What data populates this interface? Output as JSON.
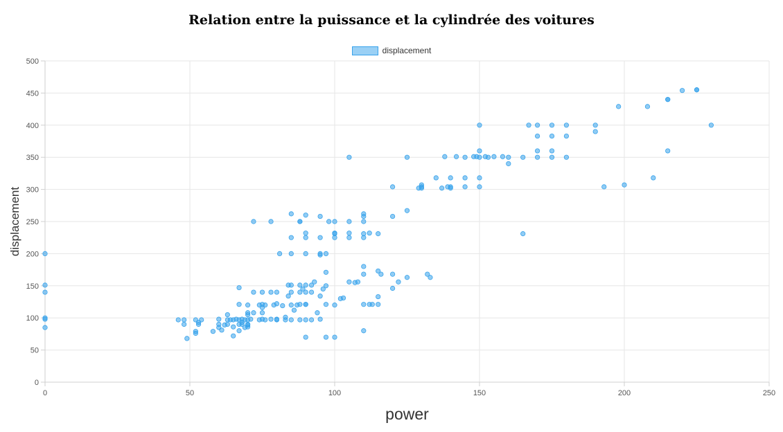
{
  "chart_data": {
    "type": "scatter",
    "title": "Relation entre la puissance et la cylindrée des voitures",
    "xlabel": "power",
    "ylabel": "displacement",
    "xlim": [
      0,
      250
    ],
    "ylim": [
      0,
      500
    ],
    "xticks": [
      "0",
      "50",
      "100",
      "150",
      "200",
      "250"
    ],
    "yticks": [
      "0",
      "50",
      "100",
      "150",
      "200",
      "250",
      "300",
      "350",
      "400",
      "450",
      "500"
    ],
    "grid": true,
    "legend_position": "top",
    "series": [
      {
        "name": "displacement",
        "color": "#36a2eb",
        "points": [
          [
            0,
            200
          ],
          [
            0,
            151
          ],
          [
            0,
            140
          ],
          [
            0,
            100
          ],
          [
            0,
            98
          ],
          [
            0,
            85
          ],
          [
            46,
            97
          ],
          [
            48,
            90
          ],
          [
            48,
            97
          ],
          [
            49,
            68
          ],
          [
            52,
            97
          ],
          [
            52,
            79
          ],
          [
            52,
            76
          ],
          [
            53,
            90
          ],
          [
            53,
            93
          ],
          [
            54,
            97
          ],
          [
            58,
            79
          ],
          [
            60,
            98
          ],
          [
            60,
            90
          ],
          [
            60,
            85
          ],
          [
            61,
            81
          ],
          [
            62,
            89
          ],
          [
            63,
            90
          ],
          [
            63,
            105
          ],
          [
            63,
            97
          ],
          [
            64,
            97
          ],
          [
            65,
            86
          ],
          [
            65,
            72
          ],
          [
            65,
            97
          ],
          [
            66,
            98
          ],
          [
            67,
            90
          ],
          [
            67,
            97
          ],
          [
            67,
            121
          ],
          [
            67,
            147
          ],
          [
            67,
            80
          ],
          [
            68,
            98
          ],
          [
            68,
            90
          ],
          [
            68,
            93
          ],
          [
            69,
            85
          ],
          [
            69,
            97
          ],
          [
            70,
            97
          ],
          [
            70,
            105
          ],
          [
            70,
            108
          ],
          [
            70,
            89
          ],
          [
            70,
            86
          ],
          [
            70,
            120
          ],
          [
            70,
            90
          ],
          [
            71,
            98
          ],
          [
            72,
            140
          ],
          [
            72,
            250
          ],
          [
            72,
            108
          ],
          [
            74,
            120
          ],
          [
            74,
            97
          ],
          [
            75,
            98
          ],
          [
            75,
            108
          ],
          [
            75,
            116
          ],
          [
            75,
            121
          ],
          [
            75,
            140
          ],
          [
            76,
            120
          ],
          [
            76,
            97
          ],
          [
            78,
            98
          ],
          [
            78,
            250
          ],
          [
            78,
            140
          ],
          [
            79,
            120
          ],
          [
            80,
            97
          ],
          [
            80,
            122
          ],
          [
            80,
            140
          ],
          [
            80,
            98
          ],
          [
            81,
            200
          ],
          [
            82,
            119
          ],
          [
            83,
            97
          ],
          [
            83,
            101
          ],
          [
            84,
            134
          ],
          [
            84,
            151
          ],
          [
            85,
            97
          ],
          [
            85,
            225
          ],
          [
            85,
            200
          ],
          [
            85,
            262
          ],
          [
            85,
            151
          ],
          [
            85,
            140
          ],
          [
            85,
            120
          ],
          [
            86,
            112
          ],
          [
            87,
            120
          ],
          [
            88,
            97
          ],
          [
            88,
            250
          ],
          [
            88,
            151
          ],
          [
            88,
            140
          ],
          [
            88,
            121
          ],
          [
            88,
            250
          ],
          [
            89,
            145
          ],
          [
            90,
            70
          ],
          [
            90,
            151
          ],
          [
            90,
            260
          ],
          [
            90,
            232
          ],
          [
            90,
            140
          ],
          [
            90,
            97
          ],
          [
            90,
            121
          ],
          [
            90,
            225
          ],
          [
            90,
            200
          ],
          [
            90,
            121
          ],
          [
            92,
            140
          ],
          [
            92,
            151
          ],
          [
            92,
            97
          ],
          [
            93,
            156
          ],
          [
            94,
            108
          ],
          [
            95,
            98
          ],
          [
            95,
            134
          ],
          [
            95,
            198
          ],
          [
            95,
            258
          ],
          [
            95,
            225
          ],
          [
            95,
            200
          ],
          [
            96,
            145
          ],
          [
            97,
            150
          ],
          [
            97,
            70
          ],
          [
            97,
            171
          ],
          [
            97,
            121
          ],
          [
            97,
            200
          ],
          [
            98,
            250
          ],
          [
            100,
            232
          ],
          [
            100,
            250
          ],
          [
            100,
            225
          ],
          [
            100,
            231
          ],
          [
            100,
            120
          ],
          [
            100,
            70
          ],
          [
            102,
            130
          ],
          [
            103,
            131
          ],
          [
            105,
            350
          ],
          [
            105,
            250
          ],
          [
            105,
            225
          ],
          [
            105,
            156
          ],
          [
            105,
            232
          ],
          [
            107,
            155
          ],
          [
            108,
            156
          ],
          [
            110,
            258
          ],
          [
            110,
            262
          ],
          [
            110,
            231
          ],
          [
            110,
            250
          ],
          [
            110,
            121
          ],
          [
            110,
            180
          ],
          [
            110,
            168
          ],
          [
            110,
            225
          ],
          [
            110,
            80
          ],
          [
            112,
            232
          ],
          [
            112,
            121
          ],
          [
            113,
            121
          ],
          [
            115,
            231
          ],
          [
            115,
            173
          ],
          [
            115,
            121
          ],
          [
            115,
            133
          ],
          [
            116,
            168
          ],
          [
            120,
            304
          ],
          [
            120,
            258
          ],
          [
            120,
            146
          ],
          [
            120,
            168
          ],
          [
            122,
            156
          ],
          [
            125,
            350
          ],
          [
            125,
            267
          ],
          [
            125,
            163
          ],
          [
            129,
            302
          ],
          [
            130,
            302
          ],
          [
            130,
            304
          ],
          [
            130,
            307
          ],
          [
            132,
            168
          ],
          [
            133,
            163
          ],
          [
            135,
            318
          ],
          [
            137,
            302
          ],
          [
            138,
            351
          ],
          [
            139,
            304
          ],
          [
            140,
            302
          ],
          [
            140,
            304
          ],
          [
            140,
            318
          ],
          [
            142,
            351
          ],
          [
            145,
            350
          ],
          [
            145,
            304
          ],
          [
            145,
            318
          ],
          [
            148,
            351
          ],
          [
            149,
            351
          ],
          [
            150,
            350
          ],
          [
            150,
            400
          ],
          [
            150,
            360
          ],
          [
            150,
            304
          ],
          [
            150,
            318
          ],
          [
            152,
            351
          ],
          [
            153,
            350
          ],
          [
            155,
            351
          ],
          [
            158,
            351
          ],
          [
            160,
            350
          ],
          [
            160,
            340
          ],
          [
            165,
            350
          ],
          [
            165,
            231
          ],
          [
            167,
            400
          ],
          [
            170,
            400
          ],
          [
            170,
            360
          ],
          [
            170,
            350
          ],
          [
            170,
            383
          ],
          [
            175,
            400
          ],
          [
            175,
            350
          ],
          [
            175,
            360
          ],
          [
            175,
            383
          ],
          [
            180,
            350
          ],
          [
            180,
            400
          ],
          [
            180,
            383
          ],
          [
            190,
            400
          ],
          [
            190,
            390
          ],
          [
            193,
            304
          ],
          [
            198,
            429
          ],
          [
            200,
            307
          ],
          [
            208,
            429
          ],
          [
            210,
            318
          ],
          [
            215,
            440
          ],
          [
            215,
            360
          ],
          [
            215,
            440
          ],
          [
            220,
            454
          ],
          [
            225,
            455
          ],
          [
            225,
            455
          ],
          [
            230,
            400
          ]
        ]
      }
    ]
  }
}
